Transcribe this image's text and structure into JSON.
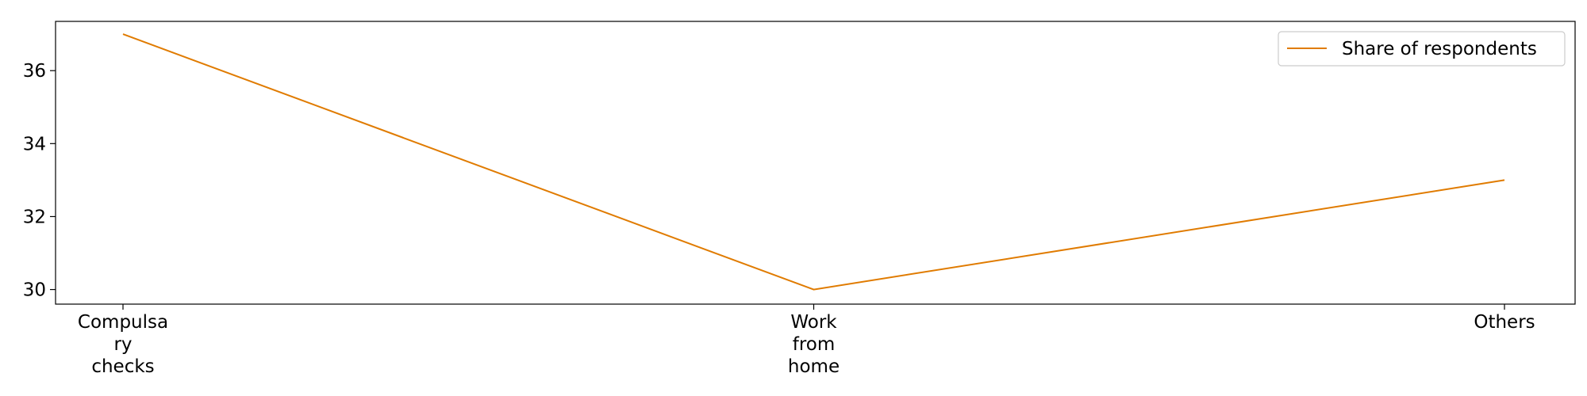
{
  "chart_data": {
    "type": "line",
    "categories": [
      "Compulsa\nry\nchecks",
      "Work\nfrom\nhome",
      "Others"
    ],
    "series": [
      {
        "name": "Share of respondents",
        "values": [
          37,
          30,
          33
        ],
        "color": "#e07b00"
      }
    ],
    "title": "",
    "xlabel": "",
    "ylabel": "",
    "ylim": [
      29.6,
      37.35
    ],
    "yticks": [
      30,
      32,
      34,
      36
    ],
    "grid": false,
    "legend": "top-right"
  }
}
